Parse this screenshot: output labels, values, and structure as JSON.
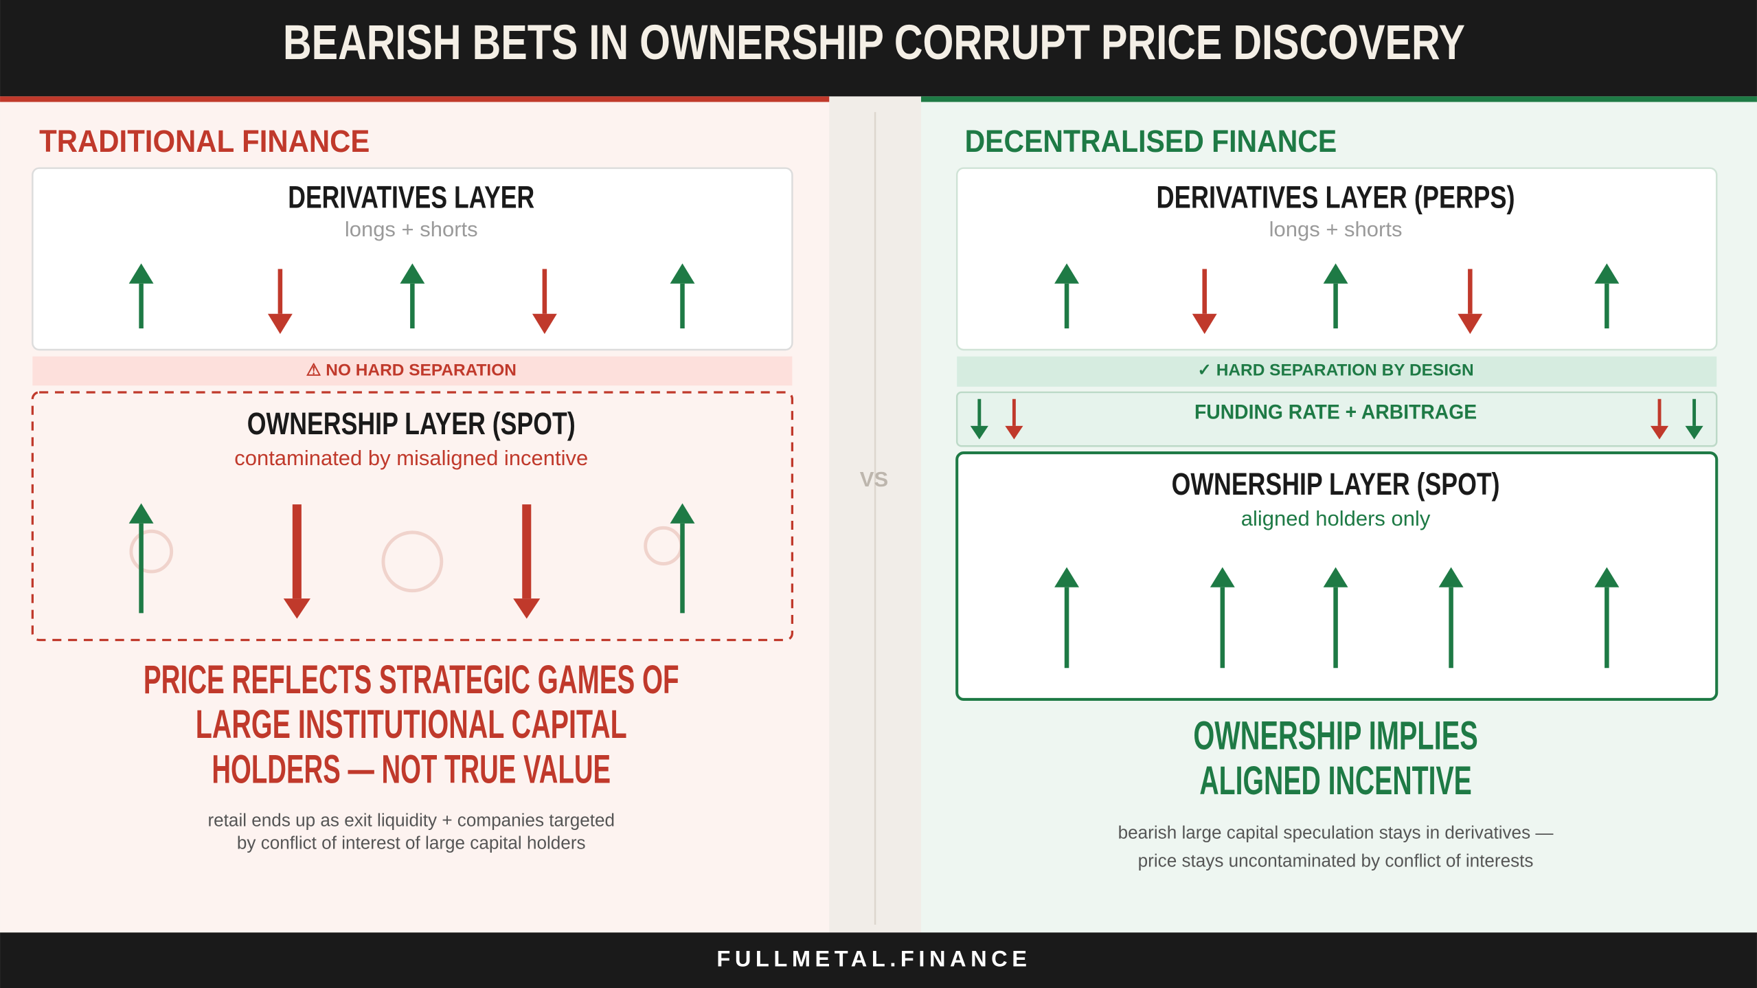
{
  "header": {
    "title": "BEARISH BETS IN OWNERSHIP CORRUPT PRICE DISCOVERY"
  },
  "left": {
    "heading": "TRADITIONAL FINANCE",
    "derivatives": {
      "title": "DERIVATIVES LAYER",
      "subtitle": "longs + shorts"
    },
    "separator": "⚠ NO HARD SEPARATION",
    "ownership": {
      "title": "OWNERSHIP LAYER (SPOT)",
      "subtitle": "contaminated by misaligned incentive"
    },
    "conclusion": [
      "PRICE REFLECTS STRATEGIC GAMES OF",
      "LARGE INSTITUTIONAL CAPITAL",
      "HOLDERS — NOT TRUE VALUE"
    ],
    "note": [
      "retail ends up as exit liquidity + companies targeted",
      "by conflict of interest of large capital holders"
    ]
  },
  "vs": "VS",
  "right": {
    "heading": "DECENTRALISED FINANCE",
    "derivatives": {
      "title": "DERIVATIVES LAYER (PERPS)",
      "subtitle": "longs + shorts"
    },
    "separator": "✓ HARD SEPARATION BY DESIGN",
    "funding": "FUNDING RATE + ARBITRAGE",
    "ownership": {
      "title": "OWNERSHIP LAYER (SPOT)",
      "subtitle": "aligned holders only"
    },
    "conclusion": [
      "OWNERSHIP IMPLIES",
      "ALIGNED INCENTIVE"
    ],
    "note": [
      "bearish large capital speculation stays in derivatives —",
      "price stays uncontaminated by conflict of interests"
    ]
  },
  "footer": {
    "brand": "FULLMETAL.FINANCE"
  }
}
